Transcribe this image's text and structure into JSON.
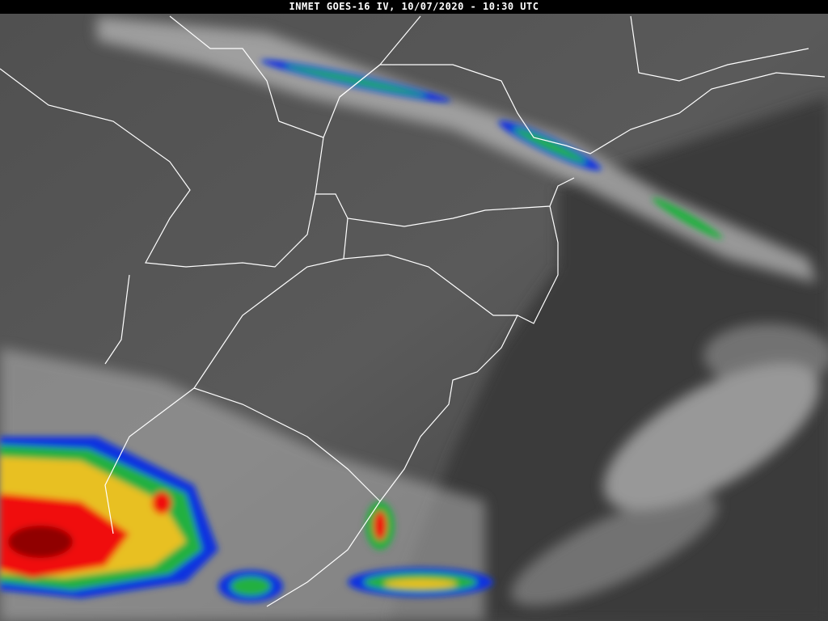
{
  "header": {
    "title": "INMET GOES-16 IV, 10/07/2020 - 10:30 UTC"
  },
  "image": {
    "content": "infrared satellite imagery with political borders",
    "colors": {
      "background": "#4a4a4a",
      "cloud": "#c8c8c8",
      "border": "#ffffff",
      "enhance_blue": "#1030e0",
      "enhance_green": "#20b040",
      "enhance_yellow": "#e8c020",
      "enhance_red": "#f01010",
      "enhance_darkred": "#900000"
    }
  }
}
